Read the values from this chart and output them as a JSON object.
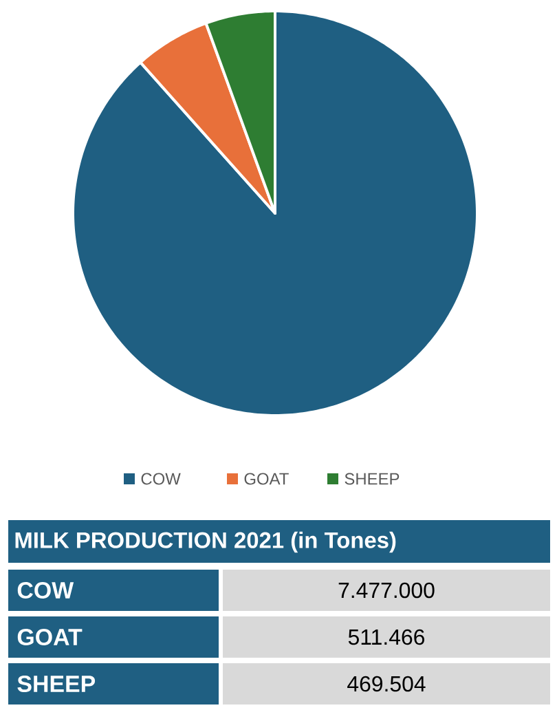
{
  "chart_data": {
    "type": "pie",
    "title": "MILK PRODUCTION 2021 (in Tones)",
    "categories": [
      "COW",
      "GOAT",
      "SHEEP"
    ],
    "values": [
      88.4,
      6.05,
      5.55
    ],
    "annotations": [
      "7.477.000",
      "511.466",
      "469.504"
    ],
    "colors": [
      "#1f5f82",
      "#e8703a",
      "#2e7d32"
    ],
    "legend": "bottom"
  }
}
